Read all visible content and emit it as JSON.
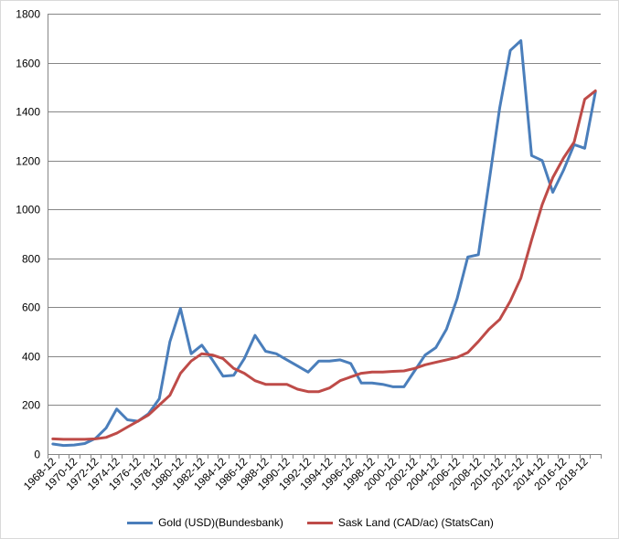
{
  "chart_data": {
    "type": "line",
    "x": [
      "1968-12",
      "1969-12",
      "1970-12",
      "1971-12",
      "1972-12",
      "1973-12",
      "1974-12",
      "1975-12",
      "1976-12",
      "1977-12",
      "1978-12",
      "1979-12",
      "1980-12",
      "1981-12",
      "1982-12",
      "1983-12",
      "1984-12",
      "1985-12",
      "1986-12",
      "1987-12",
      "1988-12",
      "1989-12",
      "1990-12",
      "1991-12",
      "1992-12",
      "1993-12",
      "1994-12",
      "1995-12",
      "1996-12",
      "1997-12",
      "1998-12",
      "1999-12",
      "2000-12",
      "2001-12",
      "2002-12",
      "2003-12",
      "2004-12",
      "2005-12",
      "2006-12",
      "2007-12",
      "2008-12",
      "2009-12",
      "2010-12",
      "2011-12",
      "2012-12",
      "2013-12",
      "2014-12",
      "2015-12",
      "2016-12",
      "2017-12",
      "2018-12",
      "2019-12"
    ],
    "tick_labels": [
      "1968-12",
      "1970-12",
      "1972-12",
      "1974-12",
      "1976-12",
      "1978-12",
      "1980-12",
      "1982-12",
      "1984-12",
      "1986-12",
      "1988-12",
      "1990-12",
      "1992-12",
      "1994-12",
      "1996-12",
      "1998-12",
      "2000-12",
      "2002-12",
      "2004-12",
      "2006-12",
      "2008-12",
      "2010-12",
      "2012-12",
      "2014-12",
      "2016-12",
      "2018-12"
    ],
    "series": [
      {
        "name": "Gold (USD)(Bundesbank)",
        "color": "#4a7ebb",
        "values": [
          41,
          35,
          37,
          43,
          64,
          106,
          184,
          140,
          134,
          165,
          226,
          459,
          595,
          410,
          445,
          385,
          318,
          322,
          390,
          485,
          420,
          410,
          385,
          360,
          335,
          380,
          380,
          385,
          370,
          290,
          290,
          285,
          275,
          275,
          340,
          405,
          435,
          510,
          635,
          805,
          815,
          1110,
          1415,
          1650,
          1690,
          1220,
          1200,
          1070,
          1160,
          1265,
          1250,
          1480
        ]
      },
      {
        "name": "Sask Land (CAD/ac) (StatsCan)",
        "color": "#be4b48",
        "values": [
          62,
          60,
          60,
          60,
          62,
          68,
          85,
          110,
          135,
          160,
          200,
          240,
          330,
          380,
          410,
          405,
          390,
          350,
          330,
          300,
          285,
          285,
          285,
          265,
          255,
          255,
          270,
          300,
          315,
          330,
          335,
          335,
          338,
          340,
          350,
          365,
          375,
          385,
          395,
          415,
          460,
          510,
          550,
          625,
          720,
          875,
          1020,
          1130,
          1210,
          1275,
          1450,
          1485
        ]
      }
    ],
    "ylim": [
      0,
      1800
    ],
    "yticks": [
      0,
      200,
      400,
      600,
      800,
      1000,
      1200,
      1400,
      1600,
      1800
    ],
    "grid": "horizontal",
    "legend_position": "bottom"
  }
}
